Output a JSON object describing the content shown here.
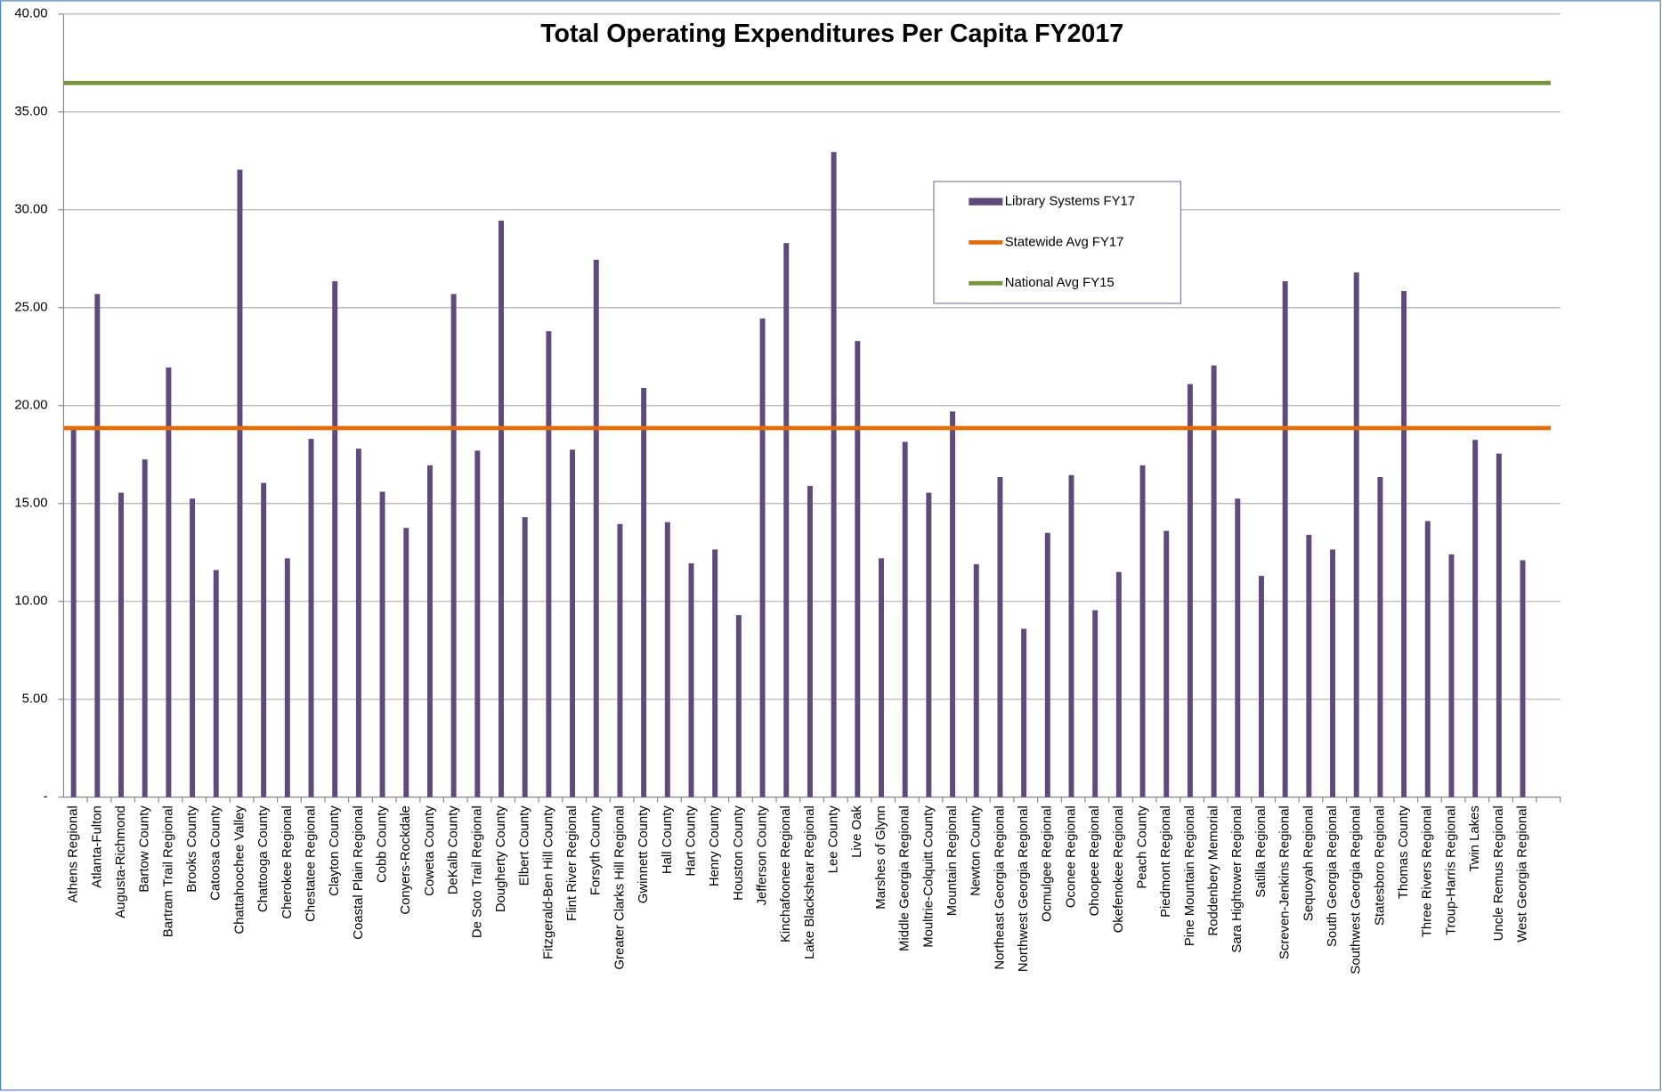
{
  "chart_data": {
    "type": "bar",
    "title": "Total Operating Expenditures Per Capita FY2017",
    "categories": [
      "Athens Regional",
      "Atlanta-Fulton",
      "Augusta-Richmond",
      "Bartow County",
      "Bartram Trail Regional",
      "Brooks County",
      "Catoosa County",
      "Chattahoochee Valley",
      "Chattooga County",
      "Cherokee Regional",
      "Chestatee Regional",
      "Clayton County",
      "Coastal Plain Regional",
      "Cobb County",
      "Conyers-Rockdale",
      "Coweta County",
      "DeKalb County",
      "De Soto Trail Regional",
      "Dougherty County",
      "Elbert County",
      "Fitzgerald-Ben Hill County",
      "Flint River Regional",
      "Forsyth County",
      "Greater Clarks Hill Regional",
      "Gwinnett County",
      "Hall County",
      "Hart County",
      "Henry County",
      "Houston County",
      "Jefferson County",
      "Kinchafoonee Regional",
      "Lake Blackshear Regional",
      "Lee County",
      "Live Oak",
      "Marshes of Glynn",
      "Middle Georgia Regional",
      "Moultrie-Colquitt County",
      "Mountain Regional",
      "Newton County",
      "Northeast Georgia Regional",
      "Northwest Georgia Regional",
      "Ocmulgee Regional",
      "Oconee Regional",
      "Ohoopee Regional",
      "Okefenokee Regional",
      "Peach County",
      "Piedmont Regional",
      "Pine Mountain Regional",
      "Roddenbery Memorial",
      "Sara Hightower Regional",
      "Satilla Regional",
      "Screven-Jenkins Regional",
      "Sequoyah Regional",
      "South Georgia Regional",
      "Southwest Georgia Regional",
      "Statesboro Regional",
      "Thomas County",
      "Three Rivers Regional",
      "Troup-Harris Regional",
      "Twin Lakes",
      "Uncle Remus Regional",
      "West Georgia Regional",
      null
    ],
    "series": [
      {
        "name": "Library Systems FY17",
        "color": "#604a7b",
        "values": [
          18.85,
          25.7,
          15.55,
          17.25,
          21.95,
          15.25,
          11.6,
          32.05,
          16.05,
          12.2,
          18.3,
          26.35,
          17.8,
          15.6,
          13.75,
          16.95,
          25.7,
          17.7,
          29.45,
          14.3,
          23.8,
          17.75,
          27.45,
          13.95,
          20.9,
          14.05,
          11.95,
          12.65,
          9.3,
          24.45,
          28.3,
          15.9,
          32.95,
          23.3,
          12.2,
          18.15,
          15.55,
          19.7,
          11.9,
          16.35,
          8.6,
          13.5,
          16.45,
          9.55,
          11.5,
          16.95,
          13.6,
          21.1,
          22.05,
          15.25,
          11.3,
          26.35,
          13.4,
          12.65,
          26.8,
          16.35,
          25.85,
          14.1,
          12.4,
          18.25,
          17.55,
          12.1,
          null
        ]
      }
    ],
    "reference_lines": [
      {
        "name": "Statewide Avg FY17",
        "color": "#e36c0a",
        "value": 18.85
      },
      {
        "name": "National Avg FY15",
        "color": "#77933c",
        "value": 36.48
      }
    ],
    "ylim": [
      0,
      40
    ],
    "yticks": [
      {
        "value": 0,
        "label": "-"
      },
      {
        "value": 5,
        "label": "5.00"
      },
      {
        "value": 10,
        "label": "10.00"
      },
      {
        "value": 15,
        "label": "15.00"
      },
      {
        "value": 20,
        "label": "20.00"
      },
      {
        "value": 25,
        "label": "25.00"
      },
      {
        "value": 30,
        "label": "30.00"
      },
      {
        "value": 35,
        "label": "35.00"
      },
      {
        "value": 40,
        "label": "40.00"
      }
    ],
    "grid": true
  }
}
